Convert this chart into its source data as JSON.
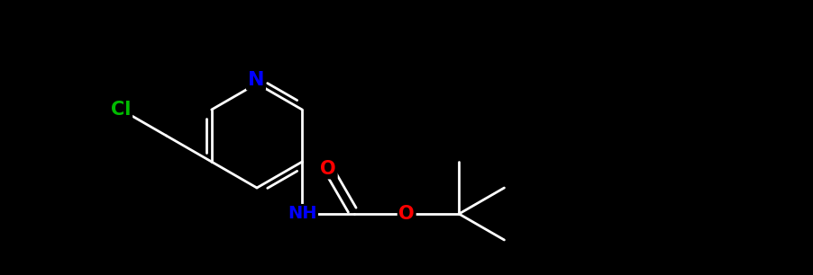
{
  "background_color": "#000000",
  "line_color": "#FFFFFF",
  "N_color": "#0000FF",
  "O_color": "#FF0000",
  "Cl_color": "#00BB00",
  "bond_lw": 2.0,
  "font_size": 14,
  "figsize": [
    9.02,
    3.06
  ],
  "dpi": 100,
  "xlim": [
    0.0,
    9.02
  ],
  "ylim": [
    0.0,
    3.06
  ]
}
